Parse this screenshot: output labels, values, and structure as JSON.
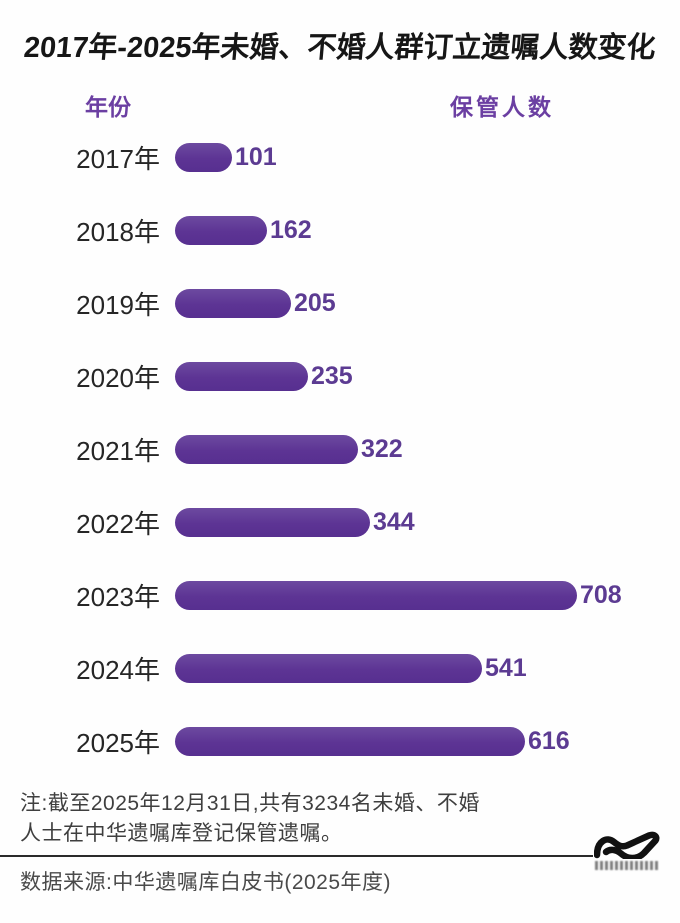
{
  "title": "2017年-2025年未婚、不婚人群订立遗嘱人数变化",
  "columns": {
    "year": "年份",
    "count": "保管人数"
  },
  "chart_data": {
    "type": "bar",
    "orientation": "horizontal",
    "categories": [
      "2017年",
      "2018年",
      "2019年",
      "2020年",
      "2021年",
      "2022年",
      "2023年",
      "2024年",
      "2025年"
    ],
    "values": [
      101,
      162,
      205,
      235,
      322,
      344,
      708,
      541,
      616
    ],
    "title": "2017年-2025年未婚、不婚人群订立遗嘱人数变化",
    "xlabel": "保管人数",
    "ylabel": "年份",
    "xlim": [
      0,
      708
    ],
    "grid": false,
    "legend": false,
    "bar_color": "#5d3494",
    "value_label_color": "#5c3b92"
  },
  "note": {
    "lines": [
      "注:截至2025年12月31日,共有3234名未婚、不婚",
      "人士在中华遗嘱库登记保管遗嘱。"
    ]
  },
  "source": "数据来源:中华遗嘱库白皮书(2025年度)",
  "colors": {
    "accent": "#5d3494",
    "header_text": "#6b3fa2",
    "title_text": "#161616",
    "note_text": "#3f3f3f"
  }
}
